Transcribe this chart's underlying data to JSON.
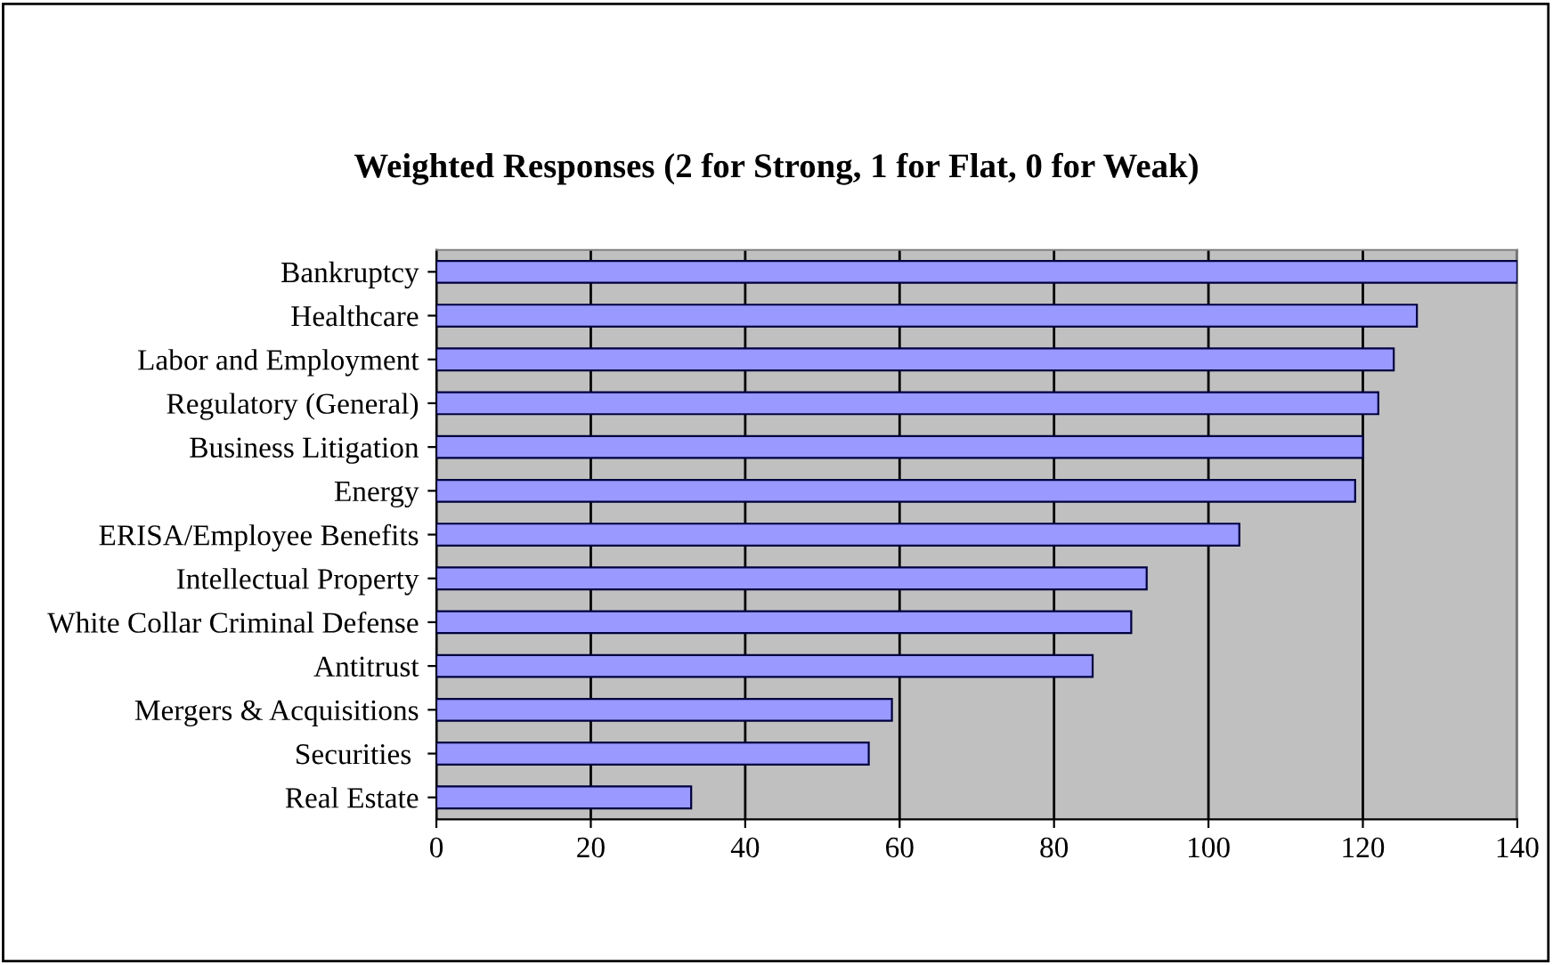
{
  "chart_data": {
    "type": "bar",
    "orientation": "horizontal",
    "title": "Weighted Responses (2 for Strong, 1 for Flat, 0 for Weak)",
    "categories": [
      "Bankruptcy",
      "Healthcare",
      "Labor and Employment",
      "Regulatory (General)",
      "Business Litigation",
      "Energy",
      "ERISA/Employee Benefits",
      "Intellectual Property",
      "White Collar Criminal Defense",
      "Antitrust",
      "Mergers & Acquisitions",
      "Securities ",
      "Real Estate"
    ],
    "values": [
      140,
      127,
      124,
      122,
      120,
      119,
      104,
      92,
      90,
      85,
      59,
      56,
      33
    ],
    "color": "#9999ff",
    "xlim": [
      0,
      140
    ],
    "xticks": [
      0,
      20,
      40,
      60,
      80,
      100,
      120,
      140
    ],
    "grid": "x",
    "legend": false
  }
}
